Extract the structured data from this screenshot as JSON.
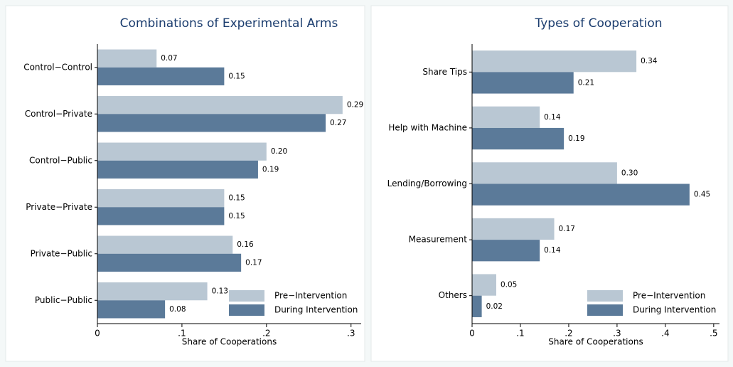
{
  "chart_data": [
    {
      "type": "bar",
      "orientation": "horizontal",
      "title": "Combinations of Experimental Arms",
      "x_label": "Share of Cooperations",
      "categories": [
        "Control−Control",
        "Control−Private",
        "Control−Public",
        "Private−Private",
        "Private−Public",
        "Public−Public"
      ],
      "series": [
        {
          "name": "Pre−Intervention",
          "color": "#b9c7d3",
          "values": [
            0.07,
            0.29,
            0.2,
            0.15,
            0.16,
            0.13
          ],
          "value_labels": [
            "0.07",
            "0.29",
            "0.20",
            "0.15",
            "0.16",
            "0.13"
          ]
        },
        {
          "name": "During Intervention",
          "color": "#5b7a99",
          "values": [
            0.15,
            0.27,
            0.19,
            0.15,
            0.17,
            0.08
          ],
          "value_labels": [
            "0.15",
            "0.27",
            "0.19",
            "0.15",
            "0.17",
            "0.08"
          ]
        }
      ],
      "xlim": [
        0,
        0.312
      ],
      "xticks": [
        0,
        {
          "value": 0.1,
          "label": ".1"
        },
        {
          "value": 0.2,
          "label": ".2"
        },
        {
          "value": 0.3,
          "label": ".3"
        }
      ],
      "legend_position": "lower right"
    },
    {
      "type": "bar",
      "orientation": "horizontal",
      "title": "Types of Cooperation",
      "x_label": "Share of Cooperations",
      "categories": [
        "Share Tips",
        "Help with Machine",
        "Lending/Borrowing",
        "Measurement",
        "Others"
      ],
      "series": [
        {
          "name": "Pre−Intervention",
          "color": "#b9c7d3",
          "values": [
            0.34,
            0.14,
            0.3,
            0.17,
            0.05
          ],
          "value_labels": [
            "0.34",
            "0.14",
            "0.30",
            "0.17",
            "0.05"
          ]
        },
        {
          "name": "During Intervention",
          "color": "#5b7a99",
          "values": [
            0.21,
            0.19,
            0.45,
            0.14,
            0.02
          ],
          "value_labels": [
            "0.21",
            "0.19",
            "0.45",
            "0.14",
            "0.02"
          ]
        }
      ],
      "xlim": [
        0,
        0.512
      ],
      "xticks": [
        0,
        {
          "value": 0.1,
          "label": ".1"
        },
        {
          "value": 0.2,
          "label": ".2"
        },
        {
          "value": 0.3,
          "label": ".3"
        },
        {
          "value": 0.4,
          "label": ".4"
        },
        {
          "value": 0.5,
          "label": ".5"
        }
      ],
      "legend_position": "lower right"
    }
  ]
}
